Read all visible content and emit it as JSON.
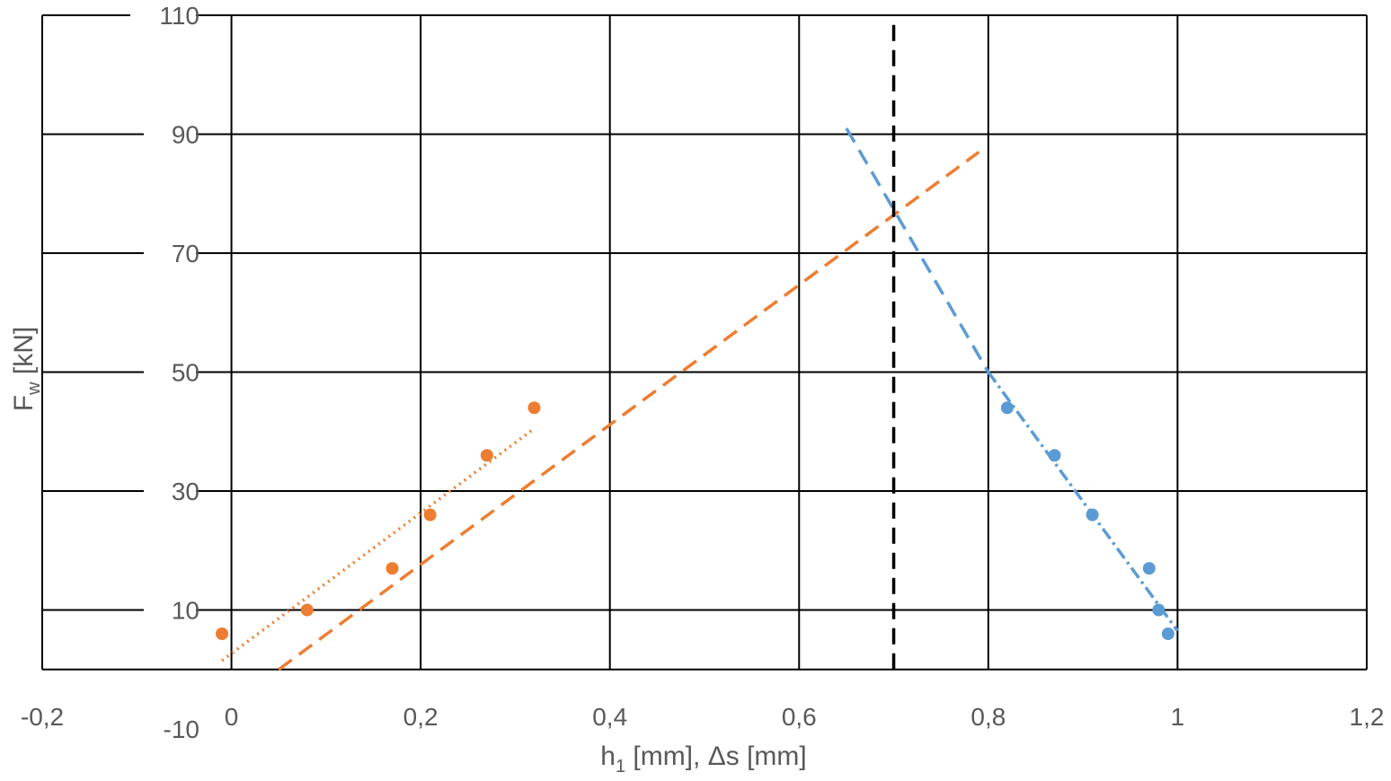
{
  "chart_data": {
    "type": "scatter",
    "title": "",
    "xlabel": "h1 [mm], Δs [mm]",
    "xlabel_parts": {
      "main": "h",
      "sub": "1",
      "rest": " [mm], Δs [mm]"
    },
    "ylabel": "Fw [kN]",
    "ylabel_parts": {
      "main": "F",
      "sub": "w",
      "rest": " [kN]"
    },
    "xlim": [
      -0.2,
      1.2
    ],
    "ylim": [
      -10,
      110
    ],
    "x_ticks": [
      -0.2,
      0,
      0.2,
      0.4,
      0.6,
      0.8,
      1,
      1.2
    ],
    "x_tick_labels": [
      "-0,2",
      "0",
      "0,2",
      "0,4",
      "0,6",
      "0,8",
      "1",
      "1,2"
    ],
    "y_ticks": [
      -10,
      10,
      30,
      50,
      70,
      90,
      110
    ],
    "y_tick_labels": [
      "-10",
      "10",
      "30",
      "50",
      "70",
      "90",
      "110"
    ],
    "y_gridlines": [
      0,
      10,
      30,
      50,
      70,
      90,
      110
    ],
    "grid": true,
    "legend": "none",
    "series": [
      {
        "color": "#ED7D31",
        "marker": "circle",
        "points": [
          [
            -0.01,
            6
          ],
          [
            0.08,
            10
          ],
          [
            0.17,
            17
          ],
          [
            0.21,
            26
          ],
          [
            0.27,
            36
          ],
          [
            0.32,
            44
          ]
        ]
      },
      {
        "color": "#5B9BD5",
        "marker": "circle",
        "points": [
          [
            0.82,
            44
          ],
          [
            0.87,
            36
          ],
          [
            0.91,
            26
          ],
          [
            0.97,
            17
          ],
          [
            0.98,
            10
          ],
          [
            0.99,
            6
          ]
        ]
      }
    ],
    "lines": [
      {
        "color": "#ED7D31",
        "style": "dotted",
        "points": [
          [
            -0.01,
            1.5
          ],
          [
            0.32,
            40.5
          ]
        ]
      },
      {
        "color": "#ED7D31",
        "style": "dashed",
        "points": [
          [
            0.05,
            0
          ],
          [
            0.79,
            87
          ]
        ]
      },
      {
        "color": "#5B9BD5",
        "style": "dashed",
        "points": [
          [
            0.65,
            91
          ],
          [
            0.8,
            50
          ]
        ]
      },
      {
        "color": "#5B9BD5",
        "style": "dash-dot",
        "points": [
          [
            0.8,
            50
          ],
          [
            1.0,
            6.5
          ]
        ]
      },
      {
        "color": "#000000",
        "style": "dashed",
        "points": [
          [
            0.7,
            0
          ],
          [
            0.7,
            110
          ]
        ]
      }
    ]
  }
}
